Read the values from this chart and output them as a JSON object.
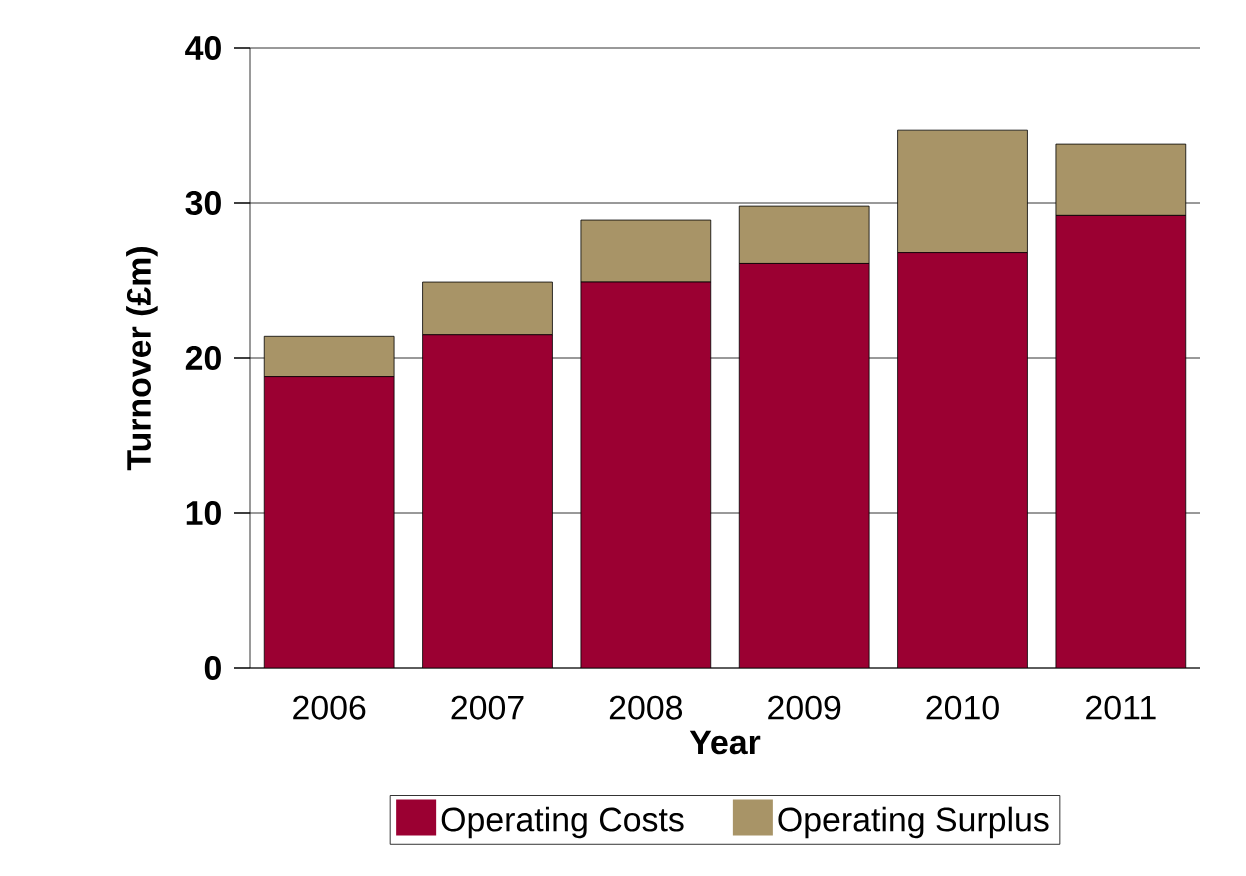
{
  "chart_data": {
    "type": "bar",
    "stacked": true,
    "xlabel": "Year",
    "ylabel": "Turnover (£m)",
    "categories": [
      "2006",
      "2007",
      "2008",
      "2009",
      "2010",
      "2011"
    ],
    "series": [
      {
        "name": "Operating Costs",
        "color": "#9b0032",
        "values": [
          18.8,
          21.5,
          24.9,
          26.1,
          26.8,
          29.2
        ]
      },
      {
        "name": "Operating Surplus",
        "color": "#a89467",
        "values": [
          2.6,
          3.4,
          4.0,
          3.7,
          7.9,
          4.6
        ]
      }
    ],
    "ylim": [
      0,
      40
    ],
    "yticks": [
      0,
      10,
      20,
      30,
      40
    ],
    "grid": "y",
    "legend": "bottom"
  }
}
